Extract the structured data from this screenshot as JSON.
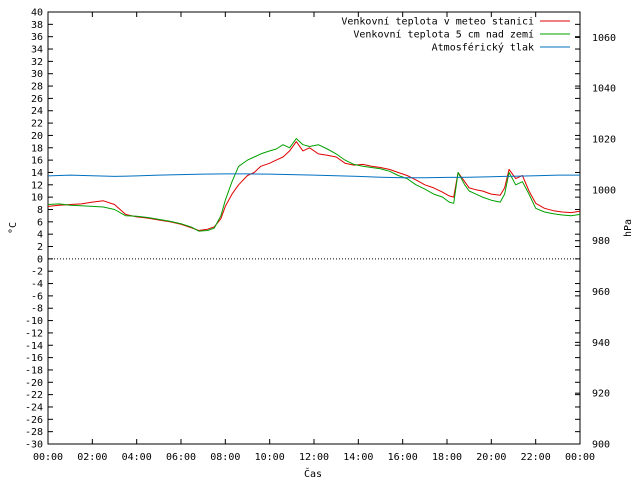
{
  "chart_data": {
    "type": "line",
    "title": "",
    "xlabel": "Čas",
    "ylabel": "°C",
    "y2label": "hPa",
    "xlim": [
      0,
      24
    ],
    "ylim": [
      -30,
      40
    ],
    "y2lim": [
      900,
      1070
    ],
    "x_tick_labels": [
      "00:00",
      "02:00",
      "04:00",
      "06:00",
      "08:00",
      "10:00",
      "12:00",
      "14:00",
      "16:00",
      "18:00",
      "20:00",
      "22:00",
      "00:00"
    ],
    "y_ticks": [
      -30,
      -28,
      -26,
      -24,
      -22,
      -20,
      -18,
      -16,
      -14,
      -12,
      -10,
      -8,
      -6,
      -4,
      -2,
      0,
      2,
      4,
      6,
      8,
      10,
      12,
      14,
      16,
      18,
      20,
      22,
      24,
      26,
      28,
      30,
      32,
      34,
      36,
      38,
      40
    ],
    "y2_ticks": [
      900,
      920,
      940,
      960,
      980,
      1000,
      1020,
      1040,
      1060
    ],
    "grid": false,
    "legend": "top-right",
    "series": [
      {
        "name": "Venkovní teplota v meteo stanici",
        "axis": "y",
        "color": "#e00000",
        "x": [
          0,
          0.5,
          1,
          1.5,
          2,
          2.5,
          3,
          3.5,
          4,
          4.5,
          5,
          5.5,
          6,
          6.5,
          6.8,
          7.2,
          7.5,
          7.8,
          8,
          8.3,
          8.6,
          9,
          9.3,
          9.6,
          10,
          10.3,
          10.6,
          10.9,
          11.2,
          11.5,
          11.8,
          12.2,
          12.6,
          13,
          13.4,
          13.8,
          14.2,
          14.6,
          15,
          15.4,
          15.8,
          16.2,
          16.6,
          17,
          17.4,
          17.8,
          18.1,
          18.3,
          18.5,
          18.8,
          19,
          19.3,
          19.6,
          20,
          20.4,
          20.6,
          20.8,
          21.1,
          21.4,
          21.7,
          22,
          22.4,
          22.8,
          23.2,
          23.6,
          24
        ],
        "values": [
          8.5,
          8.7,
          8.8,
          8.9,
          9.2,
          9.4,
          8.8,
          7.2,
          6.8,
          6.6,
          6.3,
          6.0,
          5.6,
          5.0,
          4.6,
          4.8,
          5.2,
          6.5,
          8.5,
          10.5,
          12.0,
          13.5,
          14.0,
          15.0,
          15.5,
          16.0,
          16.5,
          17.5,
          19.0,
          17.5,
          18.0,
          17.0,
          16.8,
          16.5,
          15.5,
          15.2,
          15.3,
          15.0,
          14.8,
          14.5,
          14.0,
          13.5,
          12.8,
          12.0,
          11.5,
          10.8,
          10.2,
          10.0,
          14.0,
          12.5,
          11.5,
          11.2,
          11.0,
          10.5,
          10.3,
          11.5,
          14.5,
          13.0,
          13.5,
          11.0,
          9.0,
          8.2,
          7.8,
          7.6,
          7.5,
          7.7
        ]
      },
      {
        "name": "Venkovní teplota 5 cm nad zemí",
        "axis": "y",
        "color": "#00a000",
        "x": [
          0,
          0.5,
          1,
          1.5,
          2,
          2.5,
          3,
          3.5,
          4,
          4.5,
          5,
          5.5,
          6,
          6.5,
          6.8,
          7.2,
          7.5,
          7.8,
          8,
          8.3,
          8.6,
          9,
          9.3,
          9.6,
          10,
          10.3,
          10.6,
          10.9,
          11.2,
          11.5,
          11.8,
          12.2,
          12.6,
          13,
          13.4,
          13.8,
          14.2,
          14.6,
          15,
          15.4,
          15.8,
          16.2,
          16.6,
          17,
          17.4,
          17.8,
          18.1,
          18.3,
          18.5,
          18.8,
          19,
          19.3,
          19.6,
          20,
          20.4,
          20.6,
          20.8,
          21.1,
          21.4,
          21.7,
          22,
          22.4,
          22.8,
          23.2,
          23.6,
          24
        ],
        "values": [
          8.8,
          8.9,
          8.7,
          8.6,
          8.5,
          8.4,
          8.0,
          7.0,
          6.9,
          6.7,
          6.4,
          6.1,
          5.7,
          5.1,
          4.5,
          4.6,
          5.0,
          7.0,
          9.5,
          12.5,
          15.0,
          16.0,
          16.5,
          17.0,
          17.5,
          17.8,
          18.5,
          18.0,
          19.5,
          18.5,
          18.2,
          18.5,
          17.8,
          17.0,
          16.0,
          15.3,
          15.0,
          14.8,
          14.6,
          14.2,
          13.5,
          13.0,
          12.0,
          11.3,
          10.5,
          10.0,
          9.2,
          9.0,
          14.0,
          12.0,
          11.0,
          10.5,
          10.0,
          9.5,
          9.2,
          10.5,
          14.0,
          12.0,
          12.5,
          10.5,
          8.2,
          7.6,
          7.3,
          7.1,
          7.0,
          7.2
        ]
      },
      {
        "name": "Atmosférický tlak",
        "axis": "y2",
        "color": "#0070c0",
        "x": [
          0,
          1,
          2,
          3,
          4,
          5,
          6,
          7,
          8,
          9,
          10,
          11,
          12,
          13,
          14,
          15,
          16,
          17,
          18,
          19,
          20,
          21,
          22,
          23,
          24
        ],
        "values": [
          1005.5,
          1005.8,
          1005.6,
          1005.3,
          1005.5,
          1005.8,
          1006.0,
          1006.2,
          1006.3,
          1006.3,
          1006.2,
          1006.0,
          1005.8,
          1005.6,
          1005.3,
          1005.0,
          1004.8,
          1004.8,
          1004.9,
          1005.0,
          1005.2,
          1005.4,
          1005.6,
          1005.8,
          1005.8
        ]
      }
    ]
  }
}
